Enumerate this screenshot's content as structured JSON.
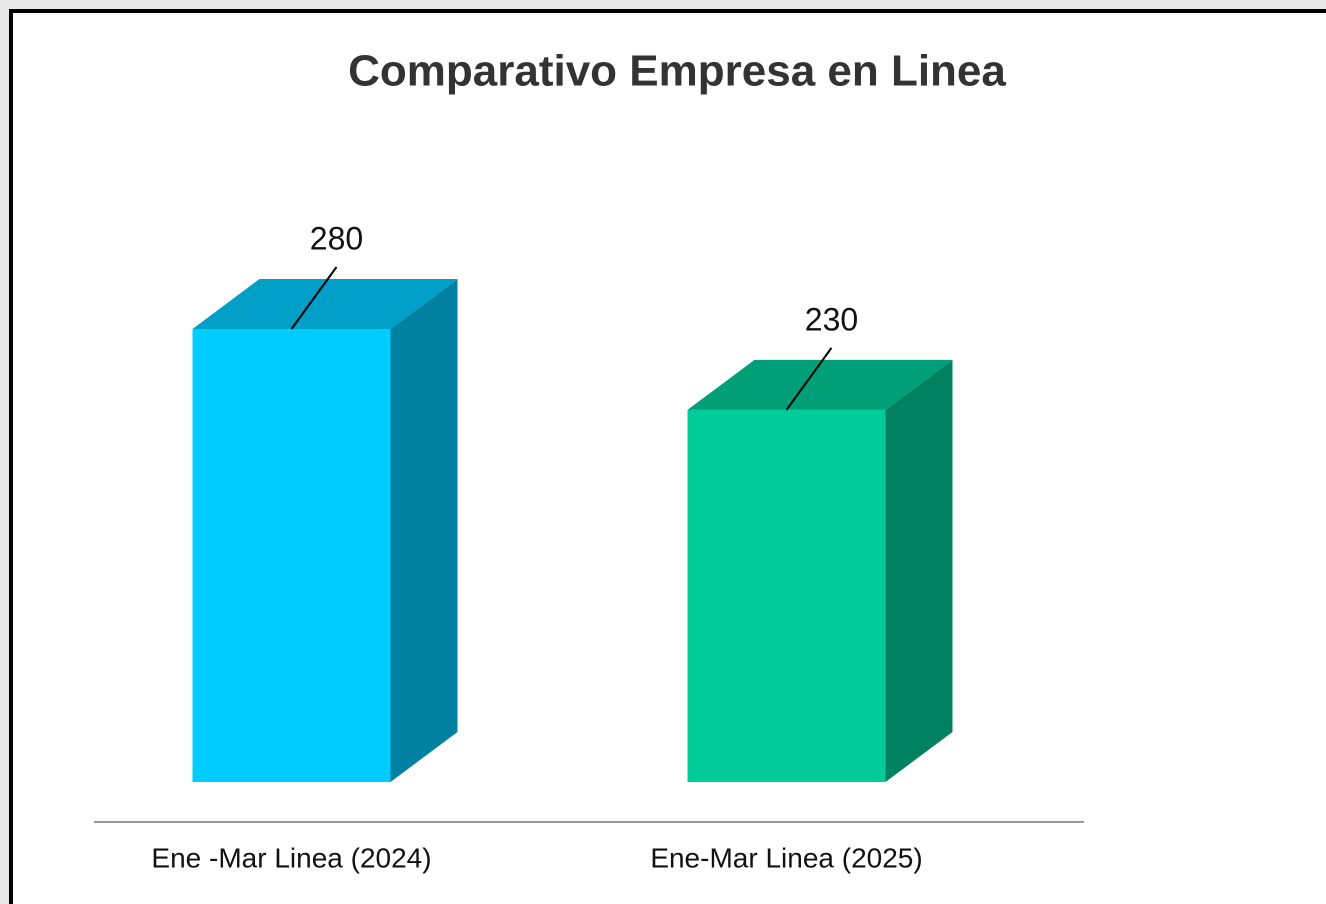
{
  "chart_data": {
    "type": "bar3d",
    "title": "Comparativo Empresa en Linea",
    "categories": [
      "Ene -Mar Linea (2024)",
      "Ene-Mar Linea (2025)"
    ],
    "values": [
      280,
      230
    ],
    "colors": [
      "#00ccff",
      "#00cc99"
    ]
  }
}
